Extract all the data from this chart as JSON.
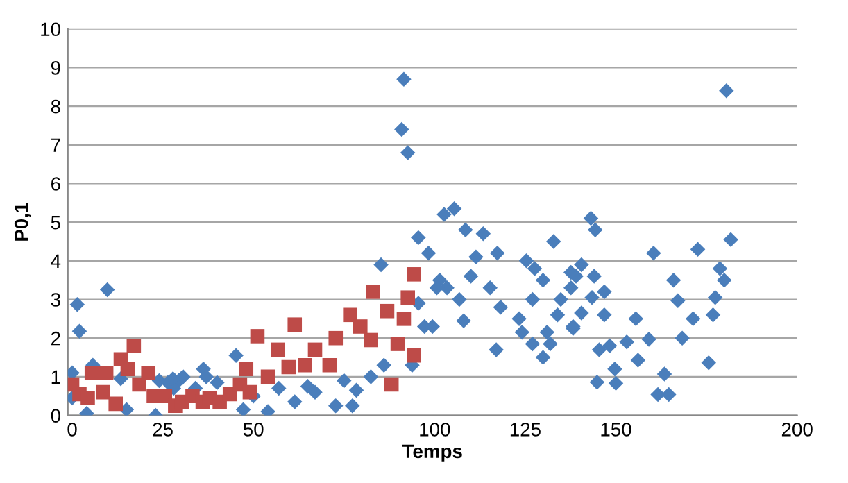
{
  "chart_data": {
    "type": "scatter",
    "xlabel": "Temps",
    "ylabel": "P0,1",
    "xlim": [
      -1.2,
      200
    ],
    "xticks": [
      0,
      25,
      50,
      100,
      125,
      150,
      200
    ],
    "ylim": [
      0,
      10
    ],
    "yticks": [
      0,
      1,
      2,
      3,
      4,
      5,
      6,
      7,
      8,
      9,
      10
    ],
    "grid": "y",
    "legend": false,
    "series": [
      {
        "color": "#4a7ebb",
        "marker": "diamond",
        "x": [
          1.4,
          2,
          9.7,
          0,
          0,
          4,
          5.7,
          15,
          13.4,
          23,
          24,
          26.4,
          29.4,
          28,
          36.2,
          37,
          40,
          34,
          27.8,
          30.6,
          45.2,
          47.2,
          54,
          61.4,
          67,
          72.7,
          77.3,
          78.4,
          82.4,
          93.8,
          85.2,
          91.5,
          90.9,
          92.6,
          95.5,
          98.3,
          101.4,
          95.5,
          97.2,
          65,
          50,
          57,
          75,
          86,
          102.6,
          105.4,
          108.5,
          113.4,
          117.3,
          111.4,
          110,
          115.3,
          118.2,
          108,
          117,
          106.8,
          103.4,
          99.4,
          100.6,
          125.3,
          127.6,
          132.8,
          123.3,
          124.1,
          127,
          129.9,
          131,
          131.9,
          127,
          129.9,
          134.8,
          137.6,
          138.2,
          133.9,
          143.1,
          144.3,
          140.5,
          144,
          146.8,
          143.4,
          140.5,
          138.2,
          146.8,
          144.8,
          145.4,
          148.3,
          149.7,
          150,
          155.5,
          153,
          156.1,
          159.1,
          161.6,
          164.6,
          163.4,
          160.4,
          165.9,
          167.1,
          168.3,
          171.3,
          176.8,
          172.6,
          178.7,
          179.9,
          177.4,
          175.6,
          181.7,
          180.5,
          137.6,
          139
        ],
        "values": [
          2.87,
          2.18,
          3.25,
          1.1,
          0.45,
          0.05,
          1.3,
          0.15,
          0.95,
          0.0,
          0.9,
          0.85,
          0.9,
          0.7,
          1.2,
          1.0,
          0.85,
          0.7,
          0.95,
          1.0,
          1.55,
          0.15,
          0.1,
          0.35,
          0.6,
          0.25,
          0.25,
          0.65,
          1.0,
          1.3,
          3.9,
          8.7,
          7.4,
          6.8,
          4.6,
          4.2,
          3.5,
          2.9,
          2.3,
          0.75,
          0.5,
          0.7,
          0.9,
          1.3,
          5.2,
          5.35,
          4.8,
          4.7,
          4.2,
          4.1,
          3.6,
          3.3,
          2.8,
          2.45,
          1.7,
          3.0,
          3.3,
          2.3,
          3.3,
          4.0,
          3.8,
          4.5,
          2.5,
          2.15,
          1.85,
          1.5,
          2.15,
          1.85,
          3.0,
          3.5,
          3.0,
          3.7,
          2.3,
          2.6,
          5.1,
          4.8,
          3.9,
          3.6,
          3.2,
          3.05,
          2.65,
          2.25,
          2.6,
          0.86,
          1.7,
          1.8,
          1.2,
          0.83,
          2.5,
          1.9,
          1.43,
          1.97,
          0.54,
          0.54,
          1.07,
          4.2,
          3.5,
          2.97,
          2.0,
          2.5,
          2.6,
          4.3,
          3.8,
          3.5,
          3.05,
          1.36,
          4.55,
          8.4,
          3.3,
          3.6
        ]
      },
      {
        "color": "#be4b48",
        "marker": "square",
        "x": [
          0,
          2,
          5.4,
          9.4,
          12,
          13.4,
          15.3,
          17,
          18.5,
          21,
          22.5,
          25.6,
          28.4,
          30.3,
          33.2,
          36,
          4.3,
          8.5,
          37.9,
          40.7,
          43.5,
          46.3,
          48,
          51.1,
          56.8,
          61.4,
          64.2,
          67,
          71,
          72.7,
          76.7,
          79.5,
          82.4,
          83,
          86.9,
          89.8,
          88.1,
          91.5,
          94.3,
          92.6,
          94.3,
          59.7,
          54,
          49
        ],
        "values": [
          0.8,
          0.55,
          1.1,
          1.1,
          0.3,
          1.45,
          1.2,
          1.8,
          0.8,
          1.1,
          0.5,
          0.5,
          0.25,
          0.35,
          0.5,
          0.35,
          0.45,
          0.6,
          0.45,
          0.35,
          0.55,
          0.8,
          1.2,
          2.05,
          1.7,
          2.35,
          1.3,
          1.7,
          1.3,
          2.0,
          2.6,
          2.3,
          1.95,
          3.2,
          2.7,
          1.85,
          0.8,
          2.5,
          3.65,
          3.05,
          1.55,
          1.25,
          1.0,
          0.6
        ]
      }
    ]
  }
}
